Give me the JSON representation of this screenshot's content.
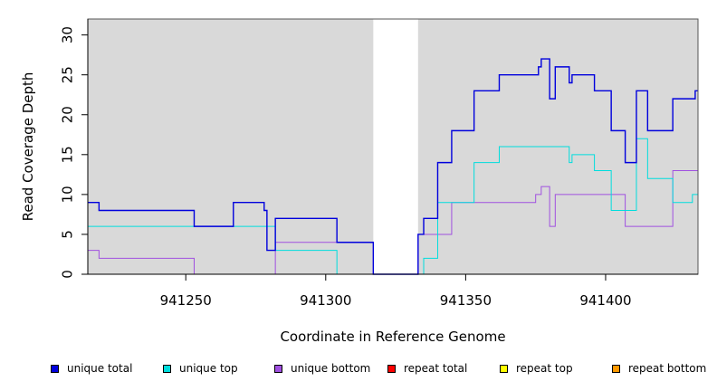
{
  "chart_data": {
    "type": "line",
    "step": true,
    "xlabel": "Coordinate in Reference Genome",
    "ylabel": "Read Coverage Depth",
    "xlim": [
      941215,
      941433
    ],
    "ylim": [
      0,
      32
    ],
    "xticks": [
      941250,
      941300,
      941350,
      941400
    ],
    "yticks": [
      0,
      5,
      10,
      15,
      20,
      25,
      30
    ],
    "background": "#d9d9d9",
    "gap_regions": [
      [
        941317,
        941333
      ]
    ],
    "legend_position": "bottom",
    "series": [
      {
        "name": "unique total",
        "color": "#0000dd",
        "x": [
          941215,
          941219,
          941253,
          941267,
          941278,
          941279,
          941282,
          941304,
          941317,
          941333,
          941335,
          941340,
          941345,
          941353,
          941362,
          941376,
          941377,
          941380,
          941382,
          941387,
          941388,
          941396,
          941402,
          941407,
          941411,
          941415,
          941424,
          941432,
          941433
        ],
        "y": [
          9,
          8,
          6,
          9,
          8,
          3,
          7,
          4,
          0,
          5,
          7,
          14,
          18,
          23,
          25,
          26,
          27,
          22,
          26,
          24,
          25,
          23,
          18,
          14,
          23,
          18,
          22,
          23,
          23
        ]
      },
      {
        "name": "unique top",
        "color": "#00dddd",
        "x": [
          941215,
          941253,
          941282,
          941304,
          941317,
          941333,
          941335,
          941340,
          941353,
          941362,
          941387,
          941388,
          941396,
          941402,
          941411,
          941415,
          941424,
          941431,
          941433
        ],
        "y": [
          6,
          6,
          3,
          0,
          0,
          0,
          2,
          9,
          14,
          16,
          14,
          15,
          13,
          8,
          17,
          12,
          9,
          10,
          10
        ]
      },
      {
        "name": "unique bottom",
        "color": "#a050e0",
        "x": [
          941215,
          941219,
          941253,
          941282,
          941304,
          941317,
          941333,
          941345,
          941375,
          941377,
          941380,
          941382,
          941396,
          941407,
          941424,
          941433
        ],
        "y": [
          3,
          2,
          0,
          4,
          4,
          0,
          5,
          9,
          10,
          11,
          6,
          10,
          10,
          6,
          13,
          13
        ]
      },
      {
        "name": "repeat total",
        "color": "#ff0000",
        "x": [
          941215,
          941433
        ],
        "y": [
          0,
          0
        ]
      },
      {
        "name": "repeat top",
        "color": "#ffff00",
        "x": [
          941215,
          941433
        ],
        "y": [
          0,
          0
        ]
      },
      {
        "name": "repeat bottom",
        "color": "#ff9900",
        "x": [
          941215,
          941433
        ],
        "y": [
          0,
          0
        ]
      }
    ]
  }
}
